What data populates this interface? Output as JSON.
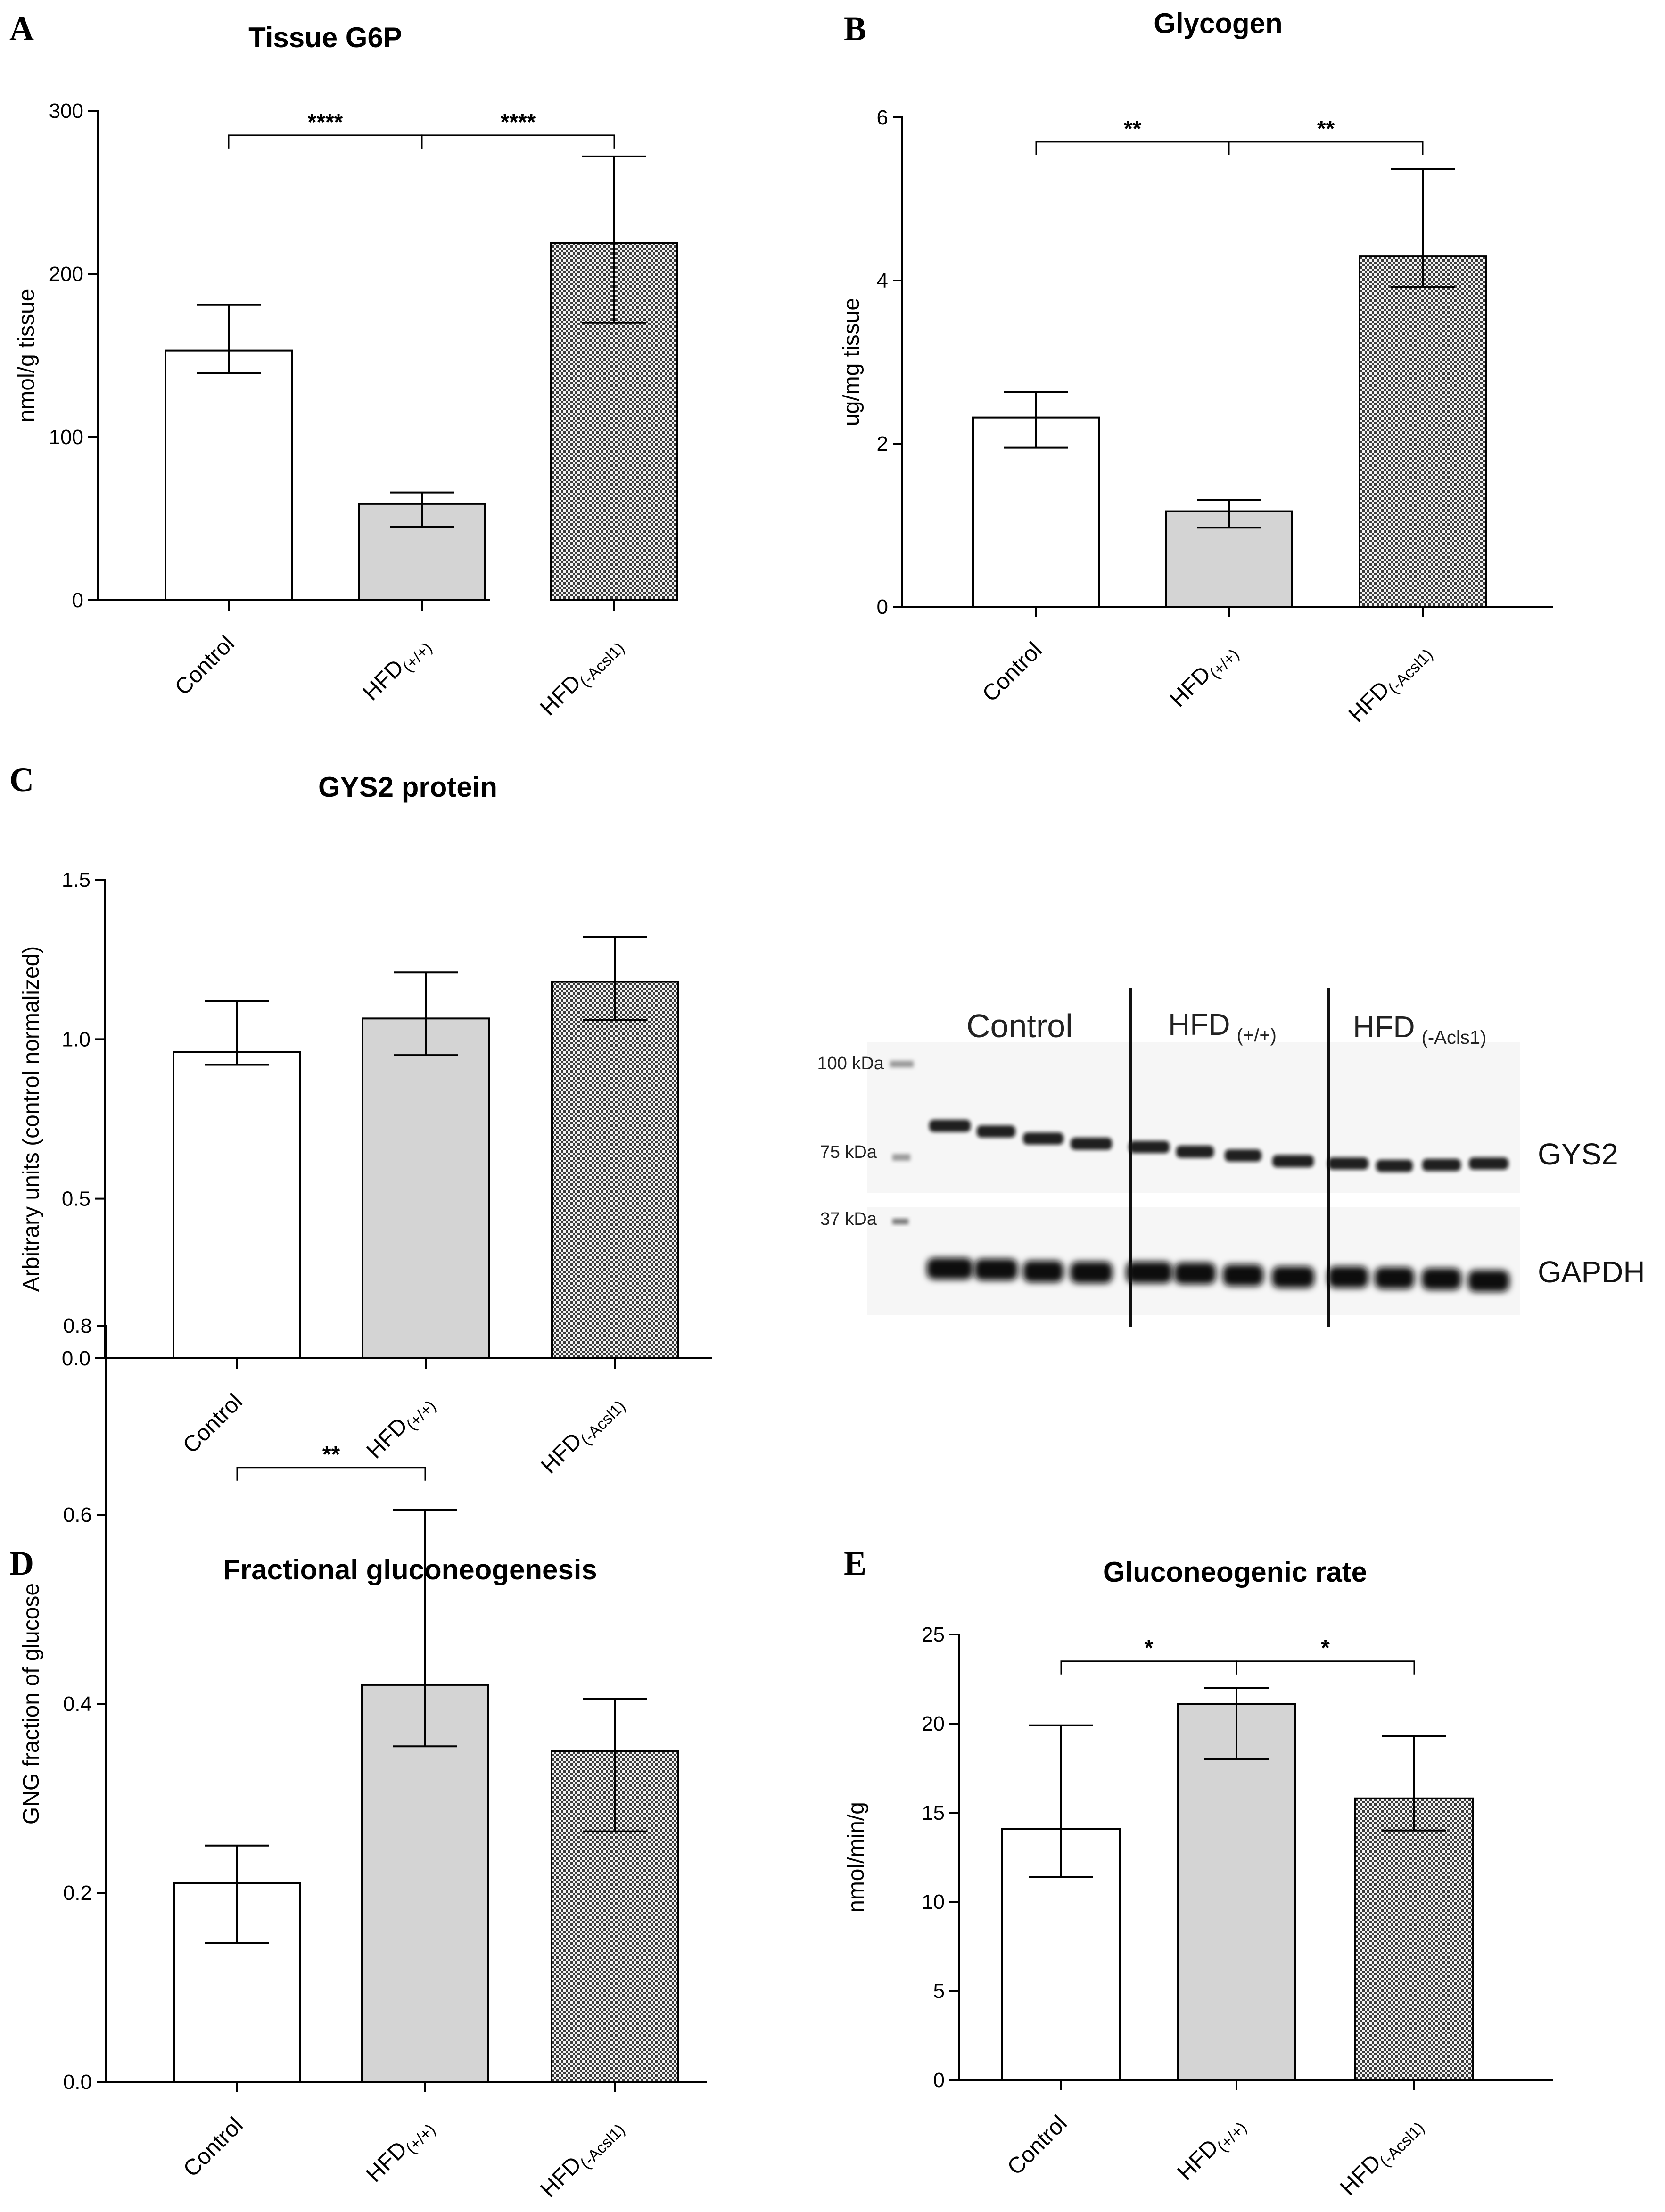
{
  "colors": {
    "control": "#ffffff",
    "hfd": "#d4d4d4",
    "acsl": "#555555",
    "stroke": "#000000",
    "band": "#0a0a0a"
  },
  "chart_data": [
    {
      "id": "A",
      "letter": "A",
      "type": "bar",
      "title": "Tissue G6P",
      "ylabel": "nmol/g tissue",
      "ylim": [
        0,
        300
      ],
      "yticks": [
        0,
        100,
        200,
        300
      ],
      "tickfmt": 0,
      "categories": [
        {
          "main": "Control",
          "sub": ""
        },
        {
          "main": "HFD",
          "sub": "(+/+)"
        },
        {
          "main": "HFD",
          "sub": "(-Acsl1)"
        }
      ],
      "values": [
        153,
        59,
        219
      ],
      "err_high": [
        181,
        66,
        272
      ],
      "err_low": [
        139,
        45,
        170
      ],
      "brackets": [
        {
          "from": 0,
          "to": 1,
          "y": 285,
          "label": "****"
        },
        {
          "from": 1,
          "to": 2,
          "y": 285,
          "label": "****"
        }
      ]
    },
    {
      "id": "B",
      "letter": "B",
      "type": "bar",
      "title": "Glycogen",
      "ylabel": "ug/mg tissue",
      "ylim": [
        0,
        6
      ],
      "yticks": [
        0,
        2,
        4,
        6
      ],
      "tickfmt": 0,
      "categories": [
        {
          "main": "Control",
          "sub": ""
        },
        {
          "main": "HFD",
          "sub": "(+/+)"
        },
        {
          "main": "HFD",
          "sub": "(-Acsl1)"
        }
      ],
      "values": [
        2.32,
        1.17,
        4.3
      ],
      "err_high": [
        2.63,
        1.31,
        5.37
      ],
      "err_low": [
        1.95,
        0.97,
        3.92
      ],
      "brackets": [
        {
          "from": 0,
          "to": 1,
          "y": 5.7,
          "label": "**"
        },
        {
          "from": 1,
          "to": 2,
          "y": 5.7,
          "label": "**"
        }
      ]
    },
    {
      "id": "C",
      "letter": "C",
      "type": "bar",
      "title": "GYS2 protein",
      "ylabel": "Arbitrary units (control normalized)",
      "ylim": [
        0,
        1.5
      ],
      "yticks": [
        0,
        0.5,
        1.0,
        1.5
      ],
      "tickfmt": 1,
      "categories": [
        {
          "main": "Control",
          "sub": ""
        },
        {
          "main": "HFD",
          "sub": "(+/+)"
        },
        {
          "main": "HFD",
          "sub": "(-Acsl1)"
        }
      ],
      "values": [
        0.96,
        1.065,
        1.18
      ],
      "err_high": [
        1.12,
        1.21,
        1.32
      ],
      "err_low": [
        0.92,
        0.95,
        1.06
      ],
      "brackets": []
    },
    {
      "id": "D",
      "letter": "D",
      "type": "bar",
      "title": "Fractional gluconeogenesis",
      "ylabel": "GNG fraction of glucose",
      "ylim": [
        0,
        0.8
      ],
      "yticks": [
        0,
        0.2,
        0.4,
        0.6,
        0.8
      ],
      "tickfmt": 1,
      "categories": [
        {
          "main": "Control",
          "sub": ""
        },
        {
          "main": "HFD",
          "sub": "(+/+)"
        },
        {
          "main": "HFD",
          "sub": "(-Acsl1)"
        }
      ],
      "values": [
        0.21,
        0.42,
        0.35
      ],
      "err_high": [
        0.25,
        0.605,
        0.405
      ],
      "err_low": [
        0.147,
        0.355,
        0.265
      ],
      "brackets": [
        {
          "from": 0,
          "to": 1,
          "y": 0.65,
          "label": "**"
        }
      ]
    },
    {
      "id": "E",
      "letter": "E",
      "type": "bar",
      "title": "Gluconeogenic rate",
      "ylabel": "nmol/min/g",
      "ylim": [
        0,
        25
      ],
      "yticks": [
        0,
        5,
        10,
        15,
        20,
        25
      ],
      "tickfmt": 0,
      "categories": [
        {
          "main": "Control",
          "sub": ""
        },
        {
          "main": "HFD",
          "sub": "(+/+)"
        },
        {
          "main": "HFD",
          "sub": "(-Acsl1)"
        }
      ],
      "values": [
        14.1,
        21.1,
        15.8
      ],
      "err_high": [
        19.9,
        22.0,
        19.3
      ],
      "err_low": [
        11.4,
        18.0,
        14.0
      ],
      "brackets": [
        {
          "from": 0,
          "to": 1,
          "y": 23.5,
          "label": "*"
        },
        {
          "from": 1,
          "to": 2,
          "y": 23.5,
          "label": "*"
        }
      ]
    }
  ],
  "western_blot": {
    "groups": [
      {
        "main": "Control",
        "sub": ""
      },
      {
        "main": "HFD",
        "sub": "(+/+)"
      },
      {
        "main": "HFD",
        "sub": "(-Acls1)"
      }
    ],
    "markers": [
      "100 kDa",
      "75 kDa",
      "37 kDa"
    ],
    "bands": [
      "GYS2",
      "GAPDH"
    ]
  }
}
